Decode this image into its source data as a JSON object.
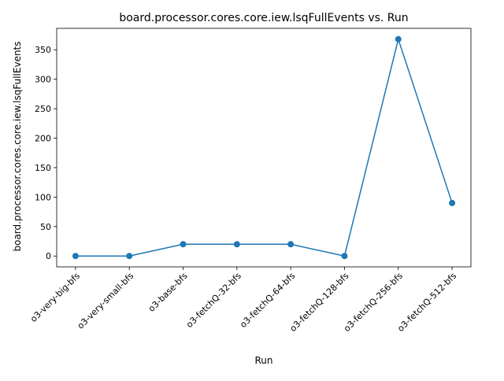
{
  "chart_data": {
    "type": "line",
    "title": "board.processor.cores.core.iew.lsqFullEvents vs. Run",
    "xlabel": "Run",
    "ylabel": "board.processor.cores.core.iew.lsqFullEvents",
    "categories": [
      "o3-very-big-bfs",
      "o3-very-small-bfs",
      "o3-base-bfs",
      "o3-fetchQ-32-bfs",
      "o3-fetchQ-64-bfs",
      "o3-fetchQ-128-bfs",
      "o3-fetchQ-256-bfs",
      "o3-fetchQ-512-bfs"
    ],
    "series": [
      {
        "values": [
          0,
          0,
          20,
          20,
          20,
          0,
          368,
          90
        ],
        "color": "#1f77b4",
        "marker": "circle"
      }
    ],
    "ylim": [
      -18.4,
      386.4
    ],
    "yticks": [
      0,
      50,
      100,
      150,
      200,
      250,
      300,
      350
    ],
    "grid": false,
    "legend": "none"
  }
}
